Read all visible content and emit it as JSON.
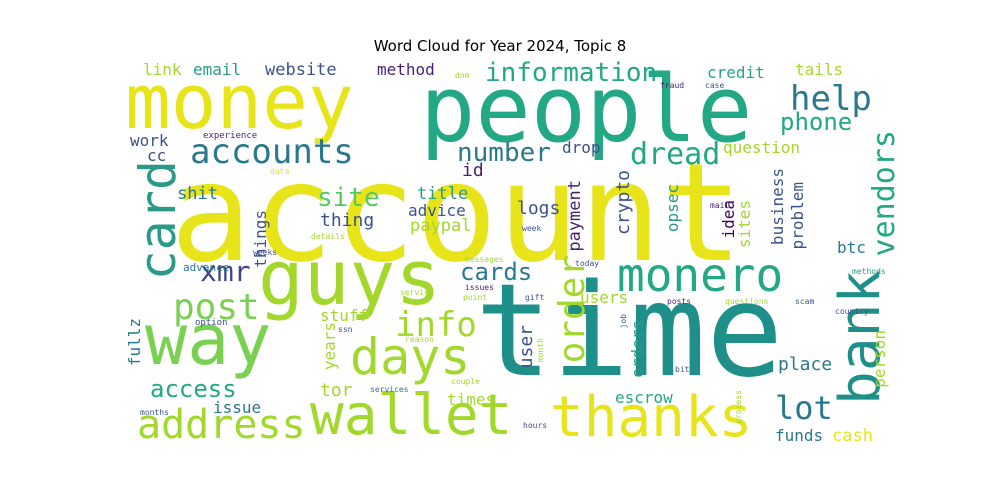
{
  "title": "Word Cloud for Year 2024, Topic 8",
  "colors": {
    "yellow": "#e8e41a",
    "lime": "#a2d82b",
    "green": "#58c866",
    "teal": "#22a884",
    "teal2": "#1f9a8a",
    "blue": "#2a788e",
    "slate": "#3b528b",
    "navy": "#414487",
    "purple": "#481f70",
    "dark": "#440154",
    "light_green": "#7ad151"
  },
  "words": {
    "account": "account",
    "time": "time",
    "people": "people",
    "money": "money",
    "guys": "guys",
    "way": "way",
    "wallet": "wallet",
    "thanks": "thanks",
    "monero": "monero",
    "bank": "bank",
    "card": "card",
    "days": "days",
    "address": "address",
    "accounts": "accounts",
    "help": "help",
    "information": "information",
    "dread": "dread",
    "number": "number",
    "order": "order",
    "info": "info",
    "post": "post",
    "vendors": "vendors",
    "lot": "lot",
    "site": "site",
    "cards": "cards",
    "xmr": "xmr",
    "access": "access",
    "phone": "phone",
    "email": "email",
    "website": "website",
    "link": "link",
    "method": "method",
    "credit": "credit",
    "tails": "tails",
    "work": "work",
    "cc": "cc",
    "drop": "drop",
    "question": "question",
    "id": "id",
    "shit": "shit",
    "title": "title",
    "thing": "thing",
    "advice": "advice",
    "paypal": "paypal",
    "logs": "logs",
    "crypto": "crypto",
    "payment": "payment",
    "opsec": "opsec",
    "idea": "idea",
    "sites": "sites",
    "business": "business",
    "problem": "problem",
    "btc": "btc",
    "things": "things",
    "stuff": "stuff",
    "years": "years",
    "tor": "tor",
    "issue": "issue",
    "times": "times",
    "escrow": "escrow",
    "user": "user",
    "users": "users",
    "orders": "orders",
    "place": "place",
    "person": "person",
    "funds": "funds",
    "cash": "cash",
    "fullz": "fullz",
    "experience": "experience",
    "data": "data",
    "details": "details",
    "weeks": "weeks",
    "advance": "advance",
    "option": "option",
    "messages": "messages",
    "week": "week",
    "mail": "mail",
    "dnm": "dnm",
    "fraud": "fraud",
    "case": "case",
    "today": "today",
    "service": "service",
    "issues": "issues",
    "point": "point",
    "gift": "gift",
    "posts": "posts",
    "questions": "questions",
    "scam": "scam",
    "methods": "methods",
    "country": "country",
    "ssn": "ssn",
    "reason": "reason",
    "job": "job",
    "month": "month",
    "couple": "couple",
    "services": "services",
    "bit": "bit",
    "process": "process",
    "hours": "hours",
    "months": "months"
  }
}
